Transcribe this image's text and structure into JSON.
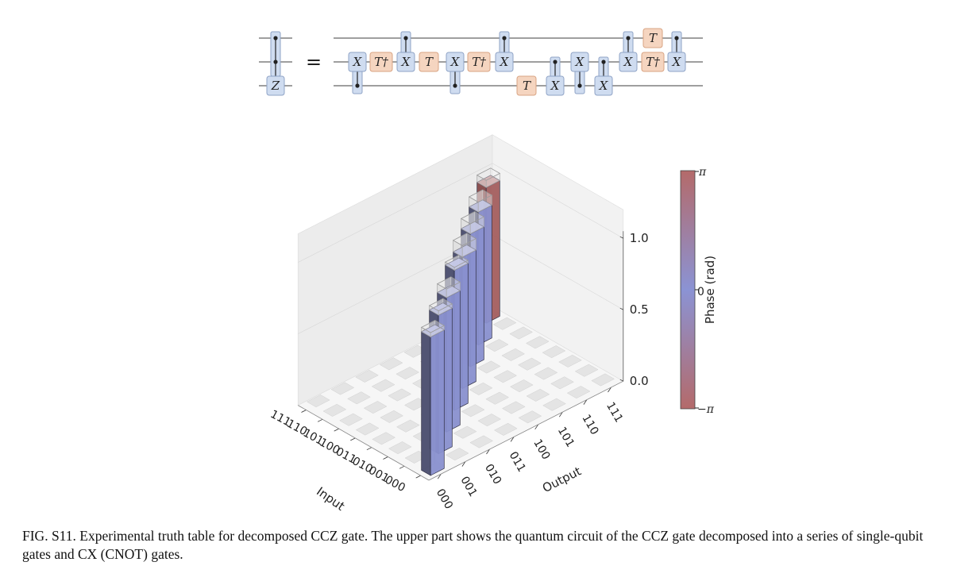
{
  "circuit": {
    "equals": "=",
    "gates": {
      "X": "X",
      "T": "T",
      "Tdag": "T†",
      "Z": "Z"
    },
    "colors": {
      "x_gate": "#cfdcf0",
      "t_gate": "#f5d5c0"
    }
  },
  "chart_data": {
    "type": "bar3d",
    "title": "",
    "xlabel": "Output",
    "ylabel": "Input",
    "zticks": [
      "0.0",
      "0.5",
      "1.0"
    ],
    "zlim": [
      0,
      1.2
    ],
    "x_categories": [
      "000",
      "001",
      "010",
      "011",
      "100",
      "101",
      "110",
      "111"
    ],
    "y_categories": [
      "000",
      "001",
      "010",
      "011",
      "100",
      "101",
      "110",
      "111"
    ],
    "ideal_height": 1.0,
    "diagonal": [
      {
        "input": "111",
        "output": "111",
        "value": 0.95,
        "phase": "-pi"
      },
      {
        "input": "110",
        "output": "110",
        "value": 0.93,
        "phase": "0"
      },
      {
        "input": "101",
        "output": "101",
        "value": 0.93,
        "phase": "0"
      },
      {
        "input": "100",
        "output": "100",
        "value": 0.92,
        "phase": "0"
      },
      {
        "input": "011",
        "output": "011",
        "value": 0.98,
        "phase": "0"
      },
      {
        "input": "010",
        "output": "010",
        "value": 0.94,
        "phase": "0"
      },
      {
        "input": "001",
        "output": "001",
        "value": 0.97,
        "phase": "0"
      },
      {
        "input": "000",
        "output": "000",
        "value": 0.97,
        "phase": "0"
      }
    ],
    "colorbar": {
      "label": "Phase (rad)",
      "ticks": [
        "π",
        "0",
        "−π"
      ],
      "colors": {
        "top": "#b46a6a",
        "middle": "#8b93d4",
        "bottom": "#b46a6a"
      }
    }
  },
  "caption": "FIG. S11. Experimental truth table for decomposed CCZ gate. The upper part shows the quantum circuit of the CCZ gate decomposed into a series of single-qubit gates and CX (CNOT) gates."
}
